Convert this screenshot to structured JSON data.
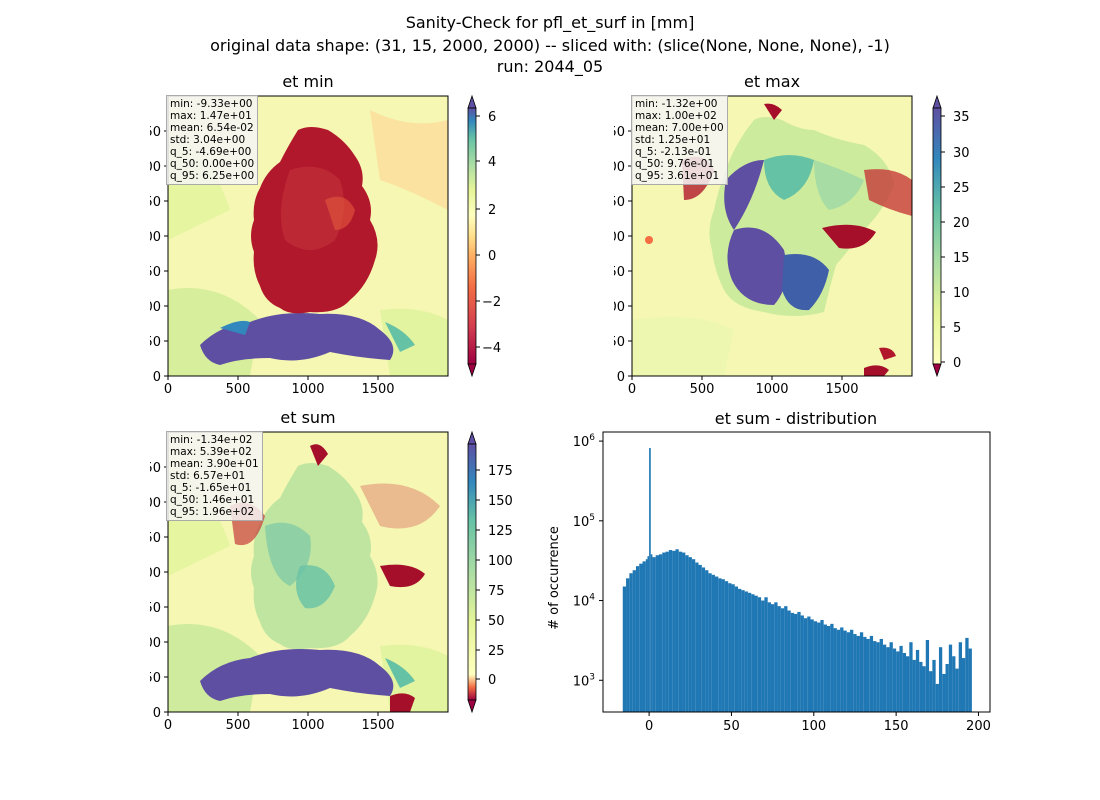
{
  "figure": {
    "title_line1": "Sanity-Check for pfl_et_surf in [mm]",
    "title_line2": "original data shape: (31, 15, 2000, 2000) -- sliced with: (slice(None, None, None), -1)",
    "title_line3": "run: 2044_05"
  },
  "panels": {
    "et_min": {
      "title": "et min",
      "stats": [
        "min: -9.33e+00",
        "max: 1.47e+01",
        "mean: 6.54e-02",
        "std: 3.04e+00",
        "q_5: -4.69e+00",
        "q_50: 0.00e+00",
        "q_95: 6.25e+00"
      ],
      "colorbar_ticks": [
        "6",
        "4",
        "2",
        "0",
        "−2",
        "−4"
      ]
    },
    "et_max": {
      "title": "et max",
      "stats": [
        "min: -1.32e+00",
        "max: 1.00e+02",
        "mean: 7.00e+00",
        "std: 1.25e+01",
        "q_5: -2.13e-01",
        "q_50: 9.76e-01",
        "q_95: 3.61e+01"
      ],
      "colorbar_ticks": [
        "35",
        "30",
        "25",
        "20",
        "15",
        "10",
        "5",
        "0"
      ]
    },
    "et_sum": {
      "title": "et sum",
      "stats": [
        "min: -1.34e+02",
        "max: 5.39e+02",
        "mean: 3.90e+01",
        "std: 6.57e+01",
        "q_5: -1.65e+01",
        "q_50: 1.46e+01",
        "q_95: 1.96e+02"
      ],
      "colorbar_ticks": [
        "175",
        "150",
        "125",
        "100",
        "75",
        "50",
        "25",
        "0"
      ]
    },
    "map_axes": {
      "x_ticks": [
        "0",
        "500",
        "1000",
        "1500"
      ],
      "y_ticks": [
        "1750",
        "1500",
        "1250",
        "1000",
        "750",
        "500",
        "250",
        "0"
      ]
    }
  },
  "chart_data": [
    {
      "type": "heatmap",
      "title": "et min",
      "x_range": [
        0,
        2000
      ],
      "y_range": [
        0,
        2000
      ],
      "colormap": "Spectral",
      "colorbar_range": [
        -5,
        6.6
      ]
    },
    {
      "type": "heatmap",
      "title": "et max",
      "x_range": [
        0,
        2000
      ],
      "y_range": [
        0,
        2000
      ],
      "colormap": "Spectral",
      "colorbar_range": [
        0,
        37
      ]
    },
    {
      "type": "heatmap",
      "title": "et sum",
      "x_range": [
        0,
        2000
      ],
      "y_range": [
        0,
        2000
      ],
      "colormap": "Spectral",
      "colorbar_range": [
        -16,
        197
      ]
    },
    {
      "type": "bar",
      "title": "et sum - distribution",
      "ylabel": "# of occurrence",
      "yscale": "log",
      "xlim": [
        -28,
        207
      ],
      "ylim": [
        400,
        1300000
      ],
      "x_ticks": [
        0,
        50,
        100,
        150,
        200
      ],
      "y_ticks": [
        "10^3",
        "10^4",
        "10^5",
        "10^6"
      ],
      "bar_color": "#1f77b4",
      "bins_x": [
        -16,
        -14,
        -12,
        -10,
        -8,
        -6,
        -4,
        -2,
        -1,
        0,
        1,
        2,
        4,
        6,
        8,
        10,
        12,
        14,
        16,
        18,
        20,
        22,
        24,
        26,
        28,
        30,
        32,
        34,
        36,
        38,
        40,
        42,
        44,
        46,
        48,
        50,
        52,
        54,
        56,
        58,
        60,
        62,
        64,
        66,
        68,
        70,
        72,
        74,
        76,
        78,
        80,
        82,
        84,
        86,
        88,
        90,
        92,
        94,
        96,
        98,
        100,
        102,
        104,
        106,
        108,
        110,
        112,
        114,
        116,
        118,
        120,
        122,
        124,
        126,
        128,
        130,
        132,
        134,
        136,
        138,
        140,
        142,
        144,
        146,
        148,
        150,
        152,
        154,
        156,
        158,
        160,
        162,
        164,
        166,
        168,
        170,
        172,
        174,
        176,
        178,
        180,
        182,
        184,
        186,
        188,
        190,
        192,
        194
      ],
      "bins_y": [
        15000,
        19000,
        22000,
        24000,
        27000,
        29000,
        31000,
        33000,
        36000,
        820000,
        38000,
        35000,
        37000,
        38000,
        40000,
        41000,
        43000,
        42000,
        44000,
        41000,
        40000,
        37000,
        35000,
        33000,
        30000,
        28000,
        26000,
        24000,
        22000,
        21000,
        20000,
        19000,
        18500,
        17500,
        16500,
        16000,
        15000,
        14000,
        13500,
        13000,
        12500,
        12000,
        11500,
        11000,
        10000,
        11000,
        9500,
        9000,
        9500,
        8500,
        8000,
        8500,
        7500,
        7000,
        6800,
        7200,
        6500,
        6000,
        6300,
        5800,
        5500,
        5300,
        5700,
        5000,
        4800,
        5100,
        4500,
        4300,
        4600,
        4200,
        4000,
        4300,
        3800,
        3600,
        4000,
        3500,
        3300,
        3600,
        3100,
        3000,
        3300,
        2800,
        2600,
        3000,
        2500,
        2300,
        2700,
        2200,
        2000,
        3000,
        1800,
        2400,
        1700,
        1500,
        3200,
        1300,
        1800,
        900,
        2600,
        1200,
        1600,
        2800,
        2000,
        1400,
        3000,
        1900,
        3400,
        2500
      ]
    }
  ]
}
